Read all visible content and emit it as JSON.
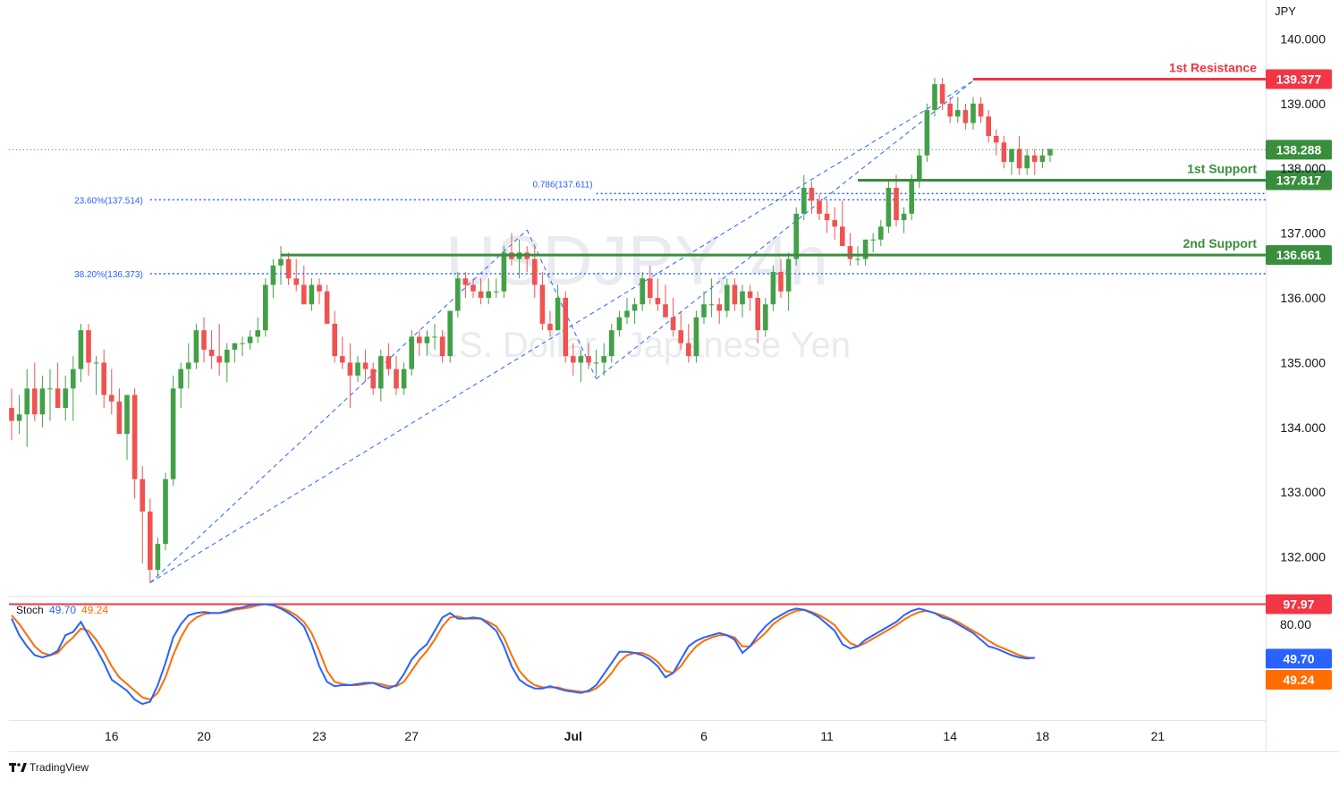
{
  "chart_data": {
    "type": "candlestick",
    "watermark": {
      "symbol": "USDJPY, 4h",
      "name": "U.S. Dollar / Japanese Yen"
    },
    "price_axis": {
      "unit_label": "JPY",
      "ylim": [
        131.4,
        140.6
      ],
      "ticks": [
        "140.000",
        "139.000",
        "138.000",
        "137.000",
        "136.000",
        "135.000",
        "134.000",
        "133.000",
        "132.000"
      ]
    },
    "time_axis": {
      "ticks": [
        {
          "label": "16",
          "bar": 13
        },
        {
          "label": "20",
          "bar": 25
        },
        {
          "label": "23",
          "bar": 40
        },
        {
          "label": "27",
          "bar": 52
        },
        {
          "label": "Jul",
          "bar": 73
        },
        {
          "label": "6",
          "bar": 90
        },
        {
          "label": "11",
          "bar": 106
        },
        {
          "label": "14",
          "bar": 122
        },
        {
          "label": "18",
          "bar": 134
        },
        {
          "label": "21",
          "bar": 149
        }
      ]
    },
    "last_price": {
      "value": 138.288,
      "label": "138.288"
    },
    "levels": [
      {
        "name": "1st Resistance",
        "value": 139.377,
        "label": "139.377",
        "color": "#f23645",
        "from_bar": 125
      },
      {
        "name": "1st Support",
        "value": 137.817,
        "label": "137.817",
        "color": "#388e3c",
        "from_bar": 110
      },
      {
        "name": "2nd Support",
        "value": 136.661,
        "label": "136.661",
        "color": "#388e3c",
        "from_bar": 35
      }
    ],
    "fib_lines": [
      {
        "label": "23.60%(137.514)",
        "value": 137.514,
        "from_bar": 18
      },
      {
        "label": "38.20%(136.373)",
        "value": 136.373,
        "from_bar": 18
      },
      {
        "label": "0.786(137.611)",
        "value": 137.611,
        "from_bar": 76
      }
    ],
    "trend_lines": [
      {
        "from": {
          "bar": 18,
          "value": 131.6
        },
        "to": {
          "bar": 125,
          "value": 139.35
        }
      },
      {
        "from": {
          "bar": 67,
          "value": 137.05
        },
        "to": {
          "bar": 76,
          "value": 134.75
        }
      },
      {
        "from": {
          "bar": 76,
          "value": 134.75
        },
        "to": {
          "bar": 125,
          "value": 139.35
        }
      },
      {
        "from": {
          "bar": 18,
          "value": 131.6
        },
        "to": {
          "bar": 67,
          "value": 137.05
        }
      }
    ],
    "candles": [
      [
        134.3,
        134.6,
        133.8,
        134.1
      ],
      [
        134.1,
        134.5,
        133.9,
        134.2
      ],
      [
        134.2,
        134.9,
        133.7,
        134.6
      ],
      [
        134.6,
        135.0,
        134.1,
        134.2
      ],
      [
        134.2,
        134.8,
        134.0,
        134.6
      ],
      [
        134.6,
        134.9,
        134.1,
        134.6
      ],
      [
        134.6,
        135.0,
        134.3,
        134.3
      ],
      [
        134.3,
        134.8,
        134.1,
        134.6
      ],
      [
        134.6,
        135.1,
        134.1,
        134.9
      ],
      [
        134.9,
        135.6,
        134.7,
        135.5
      ],
      [
        135.5,
        135.6,
        134.8,
        135.0
      ],
      [
        135.0,
        135.1,
        134.5,
        135.0
      ],
      [
        135.0,
        135.2,
        134.3,
        134.5
      ],
      [
        134.5,
        134.9,
        134.2,
        134.4
      ],
      [
        134.4,
        134.6,
        133.9,
        133.9
      ],
      [
        133.9,
        134.5,
        133.5,
        134.5
      ],
      [
        134.5,
        134.6,
        132.9,
        133.2
      ],
      [
        133.2,
        133.4,
        131.9,
        132.7
      ],
      [
        132.7,
        132.9,
        131.6,
        131.8
      ],
      [
        131.8,
        132.3,
        131.7,
        132.2
      ],
      [
        132.2,
        133.3,
        132.1,
        133.2
      ],
      [
        133.2,
        134.8,
        133.1,
        134.6
      ],
      [
        134.6,
        135.0,
        134.3,
        134.9
      ],
      [
        134.9,
        135.3,
        134.6,
        135.0
      ],
      [
        135.0,
        135.6,
        134.9,
        135.5
      ],
      [
        135.5,
        135.7,
        135.0,
        135.2
      ],
      [
        135.2,
        135.5,
        134.9,
        135.1
      ],
      [
        135.1,
        135.6,
        134.8,
        135.0
      ],
      [
        135.0,
        135.3,
        134.7,
        135.2
      ],
      [
        135.2,
        135.3,
        135.0,
        135.3
      ],
      [
        135.3,
        135.4,
        135.1,
        135.3
      ],
      [
        135.3,
        135.5,
        135.2,
        135.4
      ],
      [
        135.4,
        135.7,
        135.3,
        135.5
      ],
      [
        135.5,
        136.3,
        135.4,
        136.2
      ],
      [
        136.2,
        136.6,
        136.0,
        136.5
      ],
      [
        136.5,
        136.8,
        136.2,
        136.6
      ],
      [
        136.6,
        136.7,
        136.2,
        136.3
      ],
      [
        136.3,
        136.6,
        136.1,
        136.2
      ],
      [
        136.2,
        136.5,
        135.9,
        135.9
      ],
      [
        135.9,
        136.3,
        135.8,
        136.2
      ],
      [
        136.2,
        136.3,
        135.9,
        136.1
      ],
      [
        136.1,
        136.2,
        135.6,
        135.6
      ],
      [
        135.6,
        135.8,
        135.0,
        135.1
      ],
      [
        135.1,
        135.4,
        134.9,
        135.0
      ],
      [
        135.0,
        135.3,
        134.3,
        134.8
      ],
      [
        134.8,
        135.1,
        134.7,
        135.0
      ],
      [
        135.0,
        135.2,
        134.7,
        134.9
      ],
      [
        134.9,
        135.0,
        134.5,
        134.6
      ],
      [
        134.6,
        135.2,
        134.4,
        135.1
      ],
      [
        135.1,
        135.3,
        134.8,
        134.9
      ],
      [
        134.9,
        135.1,
        134.5,
        134.6
      ],
      [
        134.6,
        135.0,
        134.5,
        134.9
      ],
      [
        134.9,
        135.5,
        134.8,
        135.4
      ],
      [
        135.4,
        135.5,
        135.1,
        135.3
      ],
      [
        135.3,
        135.5,
        135.1,
        135.4
      ],
      [
        135.4,
        135.6,
        135.2,
        135.4
      ],
      [
        135.4,
        135.5,
        135.0,
        135.1
      ],
      [
        135.1,
        135.8,
        135.0,
        135.8
      ],
      [
        135.8,
        136.4,
        135.7,
        136.3
      ],
      [
        136.3,
        136.4,
        136.0,
        136.2
      ],
      [
        136.2,
        136.3,
        136.0,
        136.1
      ],
      [
        136.1,
        136.3,
        135.9,
        136.0
      ],
      [
        136.0,
        136.3,
        135.9,
        136.1
      ],
      [
        136.1,
        136.3,
        136.0,
        136.1
      ],
      [
        136.1,
        136.8,
        136.0,
        136.7
      ],
      [
        136.7,
        137.0,
        136.5,
        136.6
      ],
      [
        136.6,
        136.9,
        136.3,
        136.7
      ],
      [
        136.7,
        136.8,
        136.4,
        136.6
      ],
      [
        136.6,
        136.8,
        136.0,
        136.2
      ],
      [
        136.2,
        136.4,
        135.5,
        135.6
      ],
      [
        135.6,
        135.8,
        135.4,
        135.5
      ],
      [
        135.5,
        136.2,
        135.5,
        136.0
      ],
      [
        136.0,
        136.1,
        135.0,
        135.1
      ],
      [
        135.1,
        135.3,
        134.8,
        135.0
      ],
      [
        135.0,
        135.2,
        134.7,
        135.1
      ],
      [
        135.1,
        135.3,
        134.9,
        135.0
      ],
      [
        135.0,
        135.2,
        134.8,
        135.0
      ],
      [
        135.0,
        135.3,
        134.8,
        135.1
      ],
      [
        135.1,
        135.6,
        135.0,
        135.5
      ],
      [
        135.5,
        135.8,
        135.4,
        135.7
      ],
      [
        135.7,
        136.0,
        135.6,
        135.8
      ],
      [
        135.8,
        136.0,
        135.6,
        135.9
      ],
      [
        135.9,
        136.4,
        135.8,
        136.3
      ],
      [
        136.3,
        136.5,
        135.9,
        136.0
      ],
      [
        136.0,
        136.3,
        135.8,
        135.9
      ],
      [
        135.9,
        136.2,
        135.7,
        135.7
      ],
      [
        135.7,
        136.0,
        135.4,
        135.5
      ],
      [
        135.5,
        135.8,
        135.2,
        135.3
      ],
      [
        135.3,
        135.6,
        135.0,
        135.1
      ],
      [
        135.1,
        135.8,
        135.0,
        135.7
      ],
      [
        135.7,
        136.1,
        135.6,
        135.9
      ],
      [
        135.9,
        136.3,
        135.7,
        135.9
      ],
      [
        135.9,
        136.0,
        135.6,
        135.8
      ],
      [
        135.8,
        136.3,
        135.7,
        136.2
      ],
      [
        136.2,
        136.3,
        135.8,
        135.9
      ],
      [
        135.9,
        136.2,
        135.7,
        136.1
      ],
      [
        136.1,
        136.2,
        135.8,
        136.0
      ],
      [
        136.0,
        136.1,
        135.3,
        135.5
      ],
      [
        135.5,
        136.0,
        135.4,
        135.9
      ],
      [
        135.9,
        136.5,
        135.8,
        136.4
      ],
      [
        136.4,
        136.6,
        136.0,
        136.1
      ],
      [
        136.1,
        136.7,
        135.8,
        136.6
      ],
      [
        136.6,
        137.4,
        136.5,
        137.3
      ],
      [
        137.3,
        137.9,
        137.2,
        137.7
      ],
      [
        137.7,
        137.8,
        137.3,
        137.5
      ],
      [
        137.5,
        137.6,
        137.2,
        137.3
      ],
      [
        137.3,
        137.5,
        137.0,
        137.2
      ],
      [
        137.2,
        137.4,
        136.9,
        137.1
      ],
      [
        137.1,
        137.5,
        136.8,
        136.8
      ],
      [
        136.8,
        137.0,
        136.5,
        136.6
      ],
      [
        136.6,
        136.8,
        136.5,
        136.6
      ],
      [
        136.6,
        136.9,
        136.5,
        136.9
      ],
      [
        136.9,
        137.0,
        136.7,
        136.9
      ],
      [
        136.9,
        137.2,
        136.8,
        137.1
      ],
      [
        137.1,
        137.8,
        137.0,
        137.7
      ],
      [
        137.7,
        137.9,
        137.1,
        137.2
      ],
      [
        137.2,
        137.4,
        137.0,
        137.3
      ],
      [
        137.3,
        137.9,
        137.2,
        137.8
      ],
      [
        137.8,
        138.3,
        137.7,
        138.2
      ],
      [
        138.2,
        139.0,
        138.1,
        138.9
      ],
      [
        138.9,
        139.4,
        138.8,
        139.3
      ],
      [
        139.3,
        139.4,
        138.9,
        139.0
      ],
      [
        139.0,
        139.1,
        138.7,
        138.8
      ],
      [
        138.8,
        139.1,
        138.7,
        138.9
      ],
      [
        138.9,
        139.0,
        138.6,
        138.7
      ],
      [
        138.7,
        139.1,
        138.6,
        139.0
      ],
      [
        139.0,
        139.1,
        138.7,
        138.8
      ],
      [
        138.8,
        138.9,
        138.4,
        138.5
      ],
      [
        138.5,
        138.6,
        138.2,
        138.4
      ],
      [
        138.4,
        138.5,
        138.0,
        138.1
      ],
      [
        138.1,
        138.3,
        137.9,
        138.3
      ],
      [
        138.3,
        138.5,
        137.9,
        138.0
      ],
      [
        138.0,
        138.3,
        137.9,
        138.2
      ],
      [
        138.2,
        138.3,
        137.9,
        138.1
      ],
      [
        138.1,
        138.3,
        138.0,
        138.2
      ],
      [
        138.2,
        138.3,
        138.1,
        138.3
      ]
    ],
    "stochastic": {
      "label": "Stoch",
      "k_label": "49.70",
      "d_label": "49.24",
      "k_value": 49.7,
      "d_value": 49.24,
      "k_color": "#2962ff",
      "d_color": "#ff6d00",
      "ylim": [
        0,
        100
      ],
      "ticks": [
        "80.00"
      ],
      "overbought": {
        "value": 97.97,
        "label": "97.97",
        "from_bar": 0
      },
      "k": [
        85,
        70,
        60,
        52,
        50,
        52,
        56,
        70,
        73,
        82,
        70,
        58,
        45,
        30,
        25,
        20,
        12,
        8,
        10,
        25,
        45,
        68,
        80,
        88,
        90,
        91,
        90,
        90,
        92,
        94,
        95,
        97,
        98,
        98,
        97,
        94,
        90,
        85,
        78,
        62,
        42,
        28,
        24,
        25,
        25,
        26,
        27,
        27,
        24,
        22,
        25,
        35,
        48,
        56,
        62,
        74,
        86,
        90,
        85,
        85,
        86,
        85,
        80,
        74,
        60,
        42,
        30,
        25,
        22,
        22,
        24,
        22,
        20,
        19,
        18,
        20,
        25,
        35,
        45,
        55,
        55,
        54,
        52,
        48,
        42,
        32,
        36,
        48,
        60,
        65,
        68,
        70,
        72,
        70,
        66,
        54,
        60,
        70,
        78,
        84,
        88,
        92,
        94,
        93,
        90,
        86,
        80,
        74,
        62,
        58,
        60,
        66,
        70,
        74,
        78,
        82,
        88,
        92,
        94,
        92,
        90,
        86,
        84,
        80,
        76,
        72,
        66,
        60,
        58,
        55,
        52,
        50,
        49,
        49.7
      ],
      "d": [
        88,
        80,
        70,
        60,
        54,
        52,
        54,
        62,
        68,
        76,
        74,
        66,
        55,
        42,
        32,
        26,
        20,
        14,
        12,
        18,
        32,
        52,
        68,
        80,
        86,
        89,
        90,
        90,
        91,
        93,
        94,
        95,
        97,
        98,
        97,
        95,
        92,
        88,
        82,
        72,
        56,
        38,
        28,
        26,
        25,
        25,
        26,
        27,
        26,
        24,
        24,
        28,
        38,
        48,
        56,
        66,
        78,
        86,
        87,
        85,
        85,
        85,
        82,
        78,
        68,
        52,
        38,
        30,
        25,
        23,
        23,
        23,
        21,
        20,
        19,
        19,
        22,
        28,
        36,
        46,
        52,
        54,
        54,
        51,
        46,
        38,
        36,
        42,
        52,
        60,
        65,
        68,
        70,
        70,
        68,
        60,
        60,
        66,
        72,
        80,
        85,
        89,
        92,
        93,
        91,
        88,
        84,
        79,
        70,
        63,
        60,
        63,
        67,
        71,
        75,
        79,
        84,
        88,
        91,
        92,
        90,
        88,
        85,
        82,
        78,
        74,
        70,
        65,
        61,
        58,
        55,
        52,
        50,
        49.24
      ]
    }
  }
}
